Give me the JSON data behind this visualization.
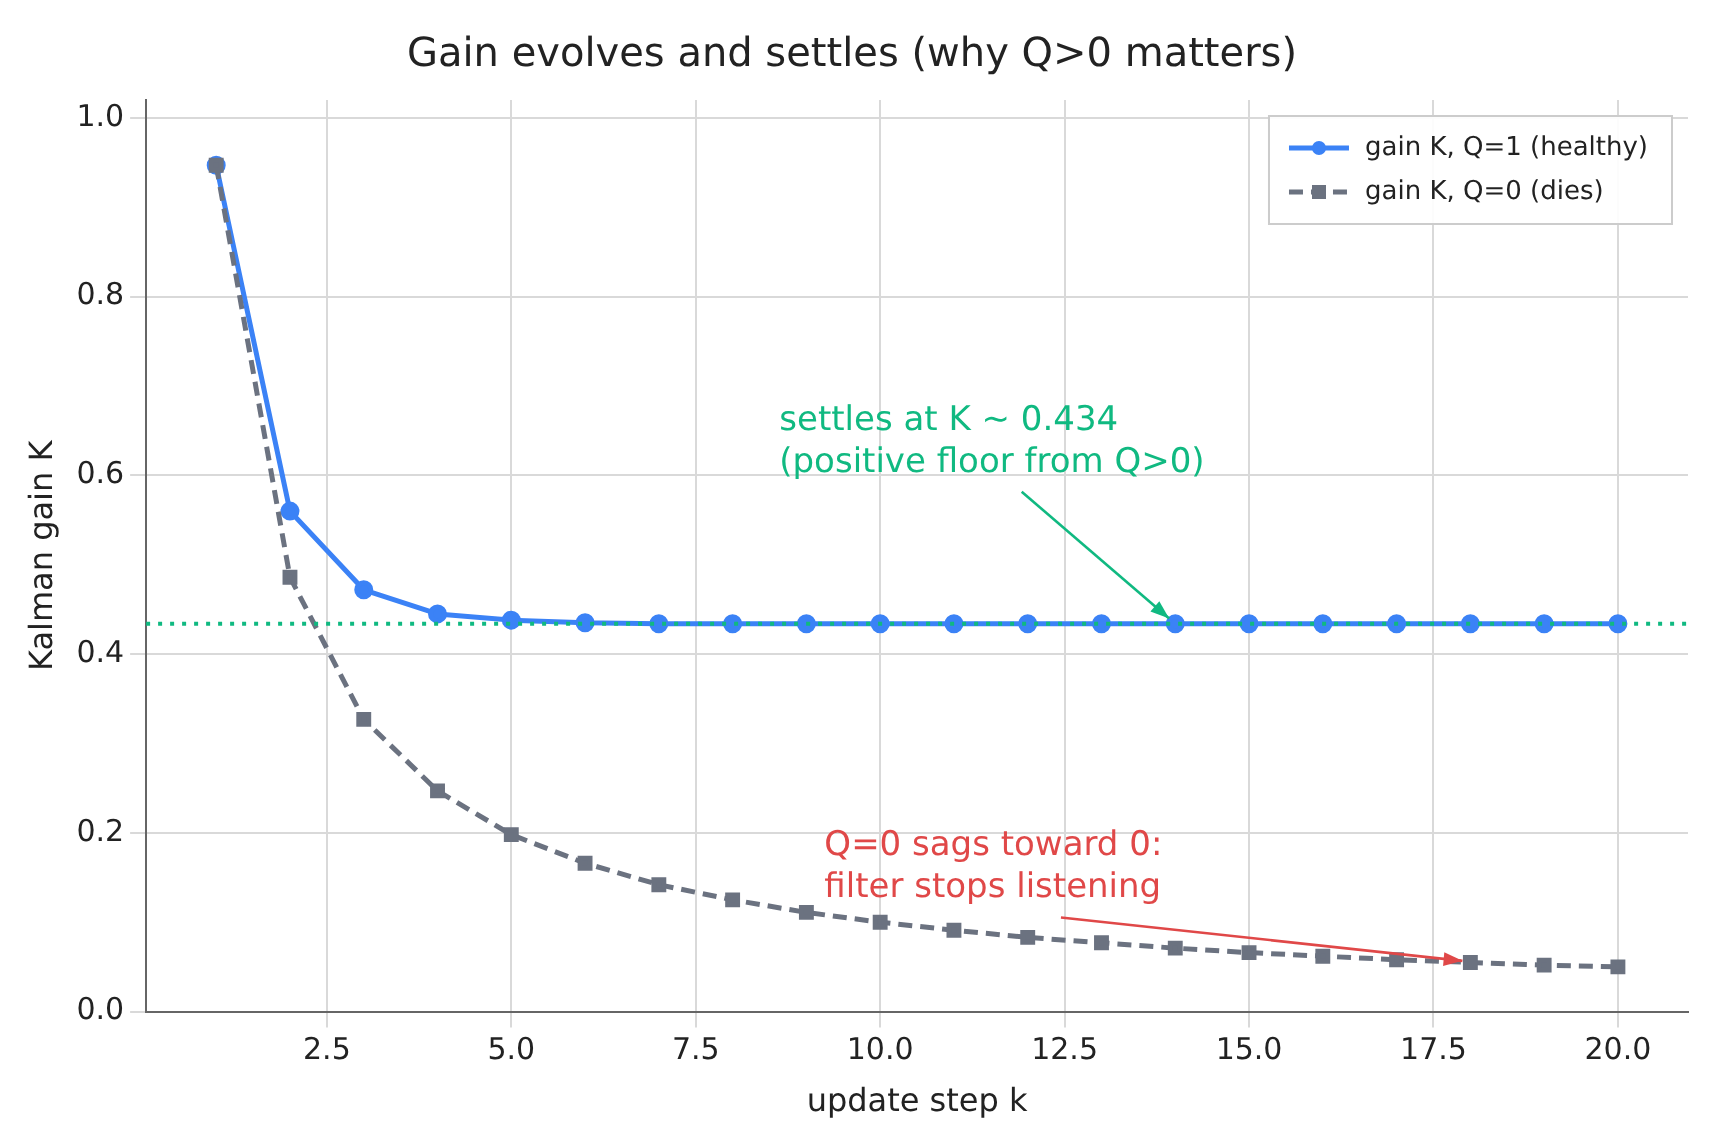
{
  "chart_data": {
    "type": "line",
    "title": "Gain evolves and settles (why Q>0 matters)",
    "xlabel": "update step k",
    "ylabel": "Kalman gain K",
    "x": [
      1,
      2,
      3,
      4,
      5,
      6,
      7,
      8,
      9,
      10,
      11,
      12,
      13,
      14,
      15,
      16,
      17,
      18,
      19,
      20
    ],
    "series": [
      {
        "name": "gain K, Q=1 (healthy)",
        "color": "#3b82f6",
        "marker": "circle",
        "line_style": "solid",
        "values": [
          0.947,
          0.56,
          0.472,
          0.445,
          0.438,
          0.435,
          0.434,
          0.434,
          0.434,
          0.434,
          0.434,
          0.434,
          0.434,
          0.434,
          0.434,
          0.434,
          0.434,
          0.434,
          0.434,
          0.434
        ]
      },
      {
        "name": "gain K, Q=0 (dies)",
        "color": "#6b7280",
        "marker": "square",
        "line_style": "dashed",
        "values": [
          0.947,
          0.486,
          0.327,
          0.247,
          0.198,
          0.166,
          0.142,
          0.125,
          0.111,
          0.1,
          0.091,
          0.083,
          0.077,
          0.071,
          0.066,
          0.062,
          0.058,
          0.055,
          0.052,
          0.05
        ]
      }
    ],
    "xlim": [
      0.05,
      20.95
    ],
    "xticks": [
      {
        "value": 2.5,
        "label": "2.5"
      },
      {
        "value": 5,
        "label": "5.0"
      },
      {
        "value": 7.5,
        "label": "7.5"
      },
      {
        "value": 10,
        "label": "10.0"
      },
      {
        "value": 12.5,
        "label": "12.5"
      },
      {
        "value": 15,
        "label": "15.0"
      },
      {
        "value": 17.5,
        "label": "17.5"
      },
      {
        "value": 20,
        "label": "20.0"
      }
    ],
    "ylim": [
      0,
      1.02
    ],
    "yticks": [
      {
        "value": 0,
        "label": "0.0"
      },
      {
        "value": 0.2,
        "label": "0.2"
      },
      {
        "value": 0.4,
        "label": "0.4"
      },
      {
        "value": 0.6,
        "label": "0.6"
      },
      {
        "value": 0.8,
        "label": "0.8"
      },
      {
        "value": 1,
        "label": "1.0"
      }
    ],
    "ref_lines": [
      {
        "axis": "y",
        "value": 0.434,
        "color": "#10b981",
        "line_style": "dotted"
      }
    ],
    "annotations": [
      {
        "text": "settles at K ~ 0.434\n(positive floor from Q>0)",
        "x": 14,
        "y": 0.434
      },
      {
        "text": "Q=0 sags toward 0:\nfilter stops listening",
        "x": 18,
        "y": 0.056
      }
    ],
    "grid": true,
    "legend": "top right"
  }
}
